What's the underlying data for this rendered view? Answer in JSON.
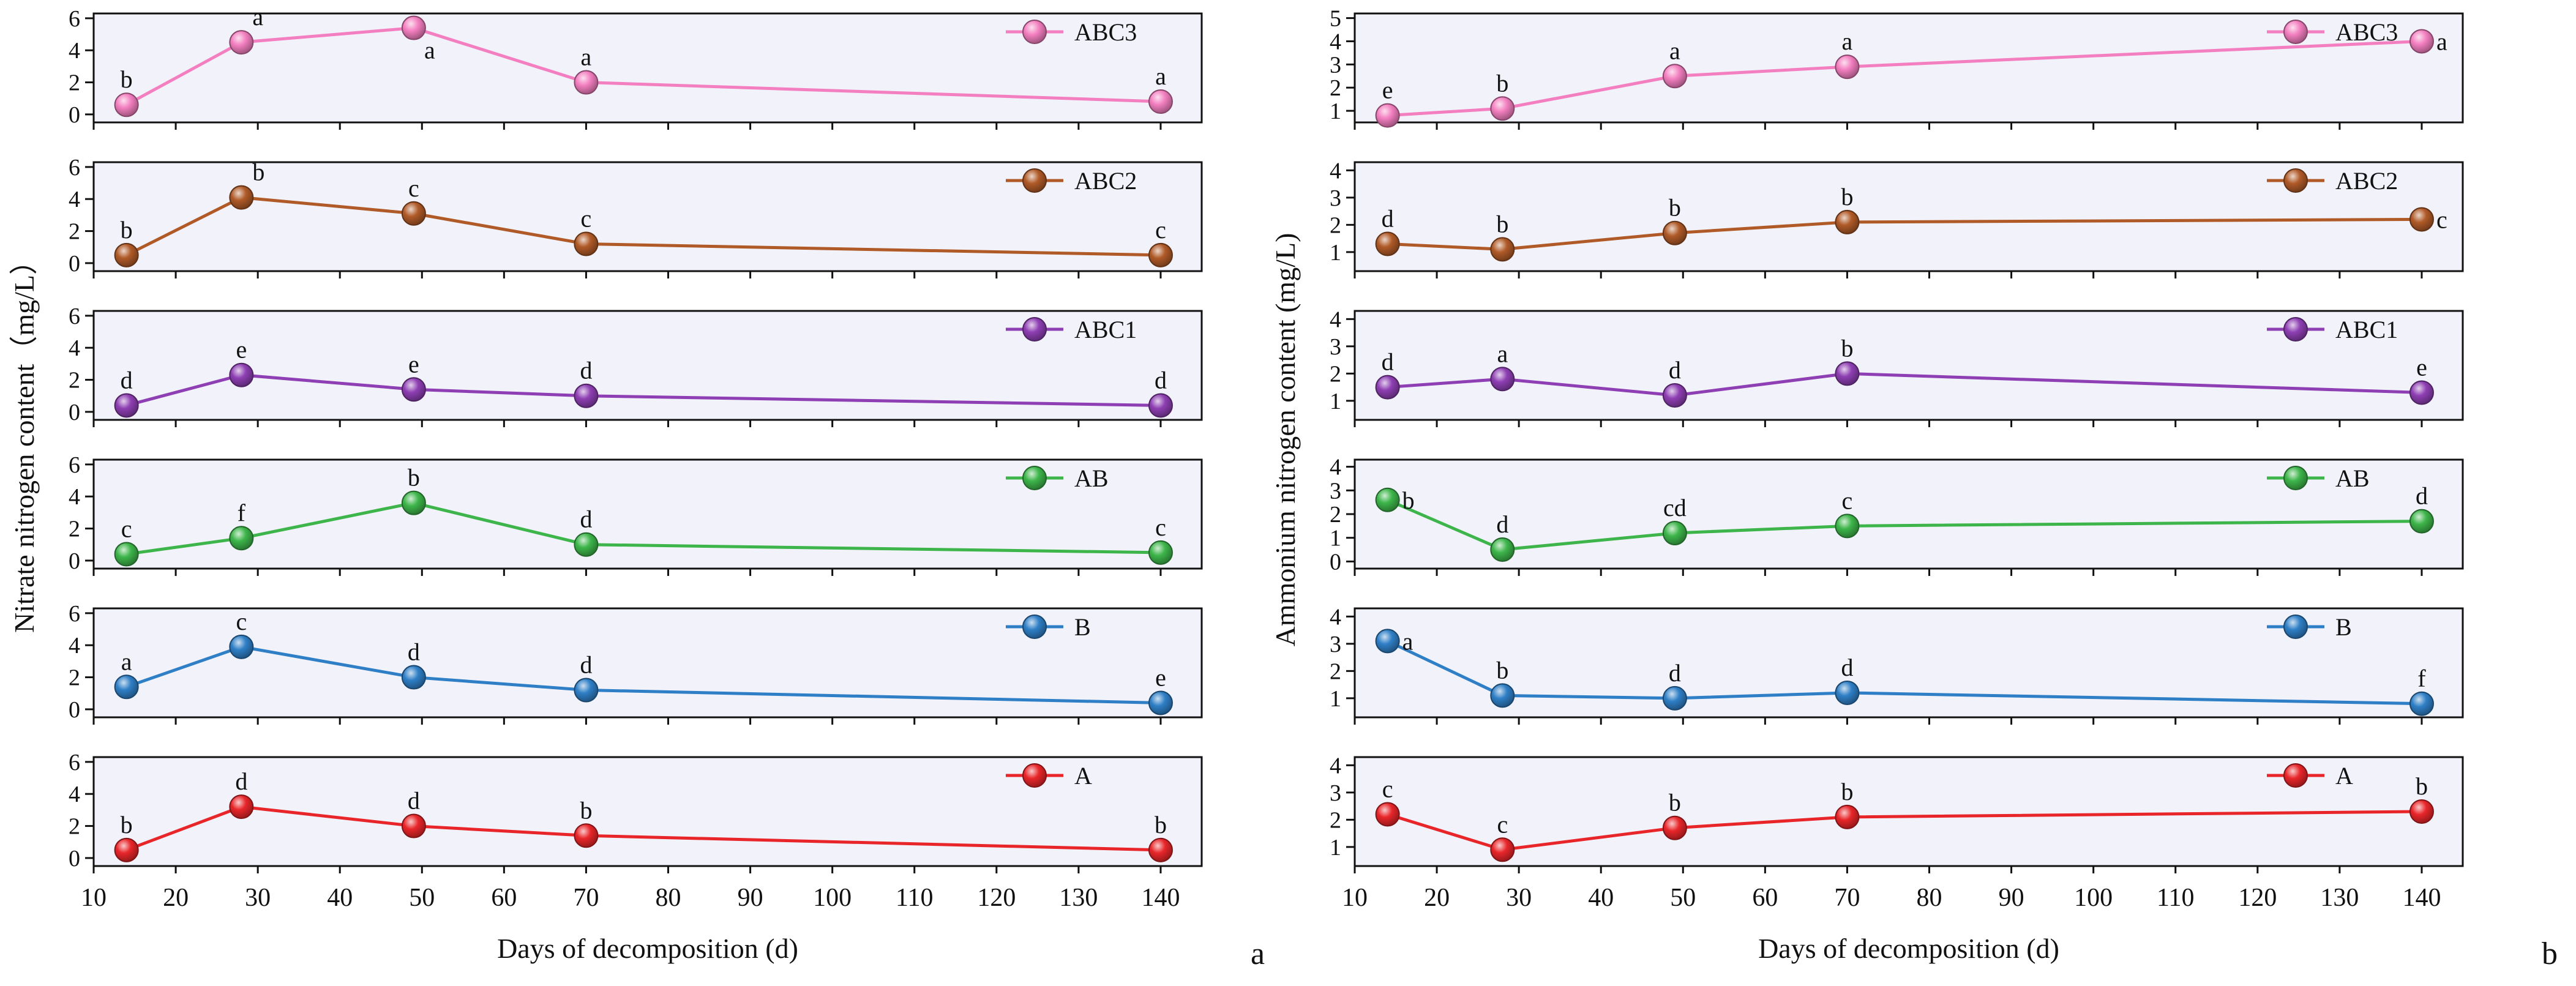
{
  "figure": {
    "panel_a_tag": "a",
    "panel_b_tag": "b"
  },
  "chart_data": [
    {
      "id": "a",
      "type": "line",
      "ylabel": "Nitrate nitrogen content（mg/L）",
      "xlabel": "Days of decomposition (d)",
      "xlim": [
        10,
        145
      ],
      "xticks": [
        10,
        20,
        30,
        40,
        50,
        60,
        70,
        80,
        90,
        100,
        110,
        120,
        130,
        140
      ],
      "x": [
        14,
        28,
        49,
        70,
        140
      ],
      "series": [
        {
          "name": "ABC3",
          "color": "#F37FC0",
          "ylim": [
            -0.5,
            6.3
          ],
          "yticks": [
            0,
            2,
            4,
            6
          ],
          "values": [
            0.6,
            4.5,
            5.4,
            2.0,
            0.8
          ],
          "letters": [
            "b",
            "a",
            "a",
            "a",
            "a"
          ],
          "letter_pos": [
            "above",
            "above",
            "below",
            "above",
            "above"
          ]
        },
        {
          "name": "ABC2",
          "color": "#B05A28",
          "ylim": [
            -0.5,
            6.3
          ],
          "yticks": [
            0,
            2,
            4,
            6
          ],
          "values": [
            0.5,
            4.1,
            3.1,
            1.2,
            0.5
          ],
          "letters": [
            "b",
            "b",
            "c",
            "c",
            "c"
          ],
          "letter_pos": [
            "above",
            "above",
            "above",
            "above",
            "above"
          ]
        },
        {
          "name": "ABC1",
          "color": "#8E3FB3",
          "ylim": [
            -0.5,
            6.3
          ],
          "yticks": [
            0,
            2,
            4,
            6
          ],
          "values": [
            0.4,
            2.3,
            1.4,
            1.0,
            0.4
          ],
          "letters": [
            "d",
            "e",
            "e",
            "d",
            "d"
          ],
          "letter_pos": [
            "above",
            "above",
            "above",
            "above",
            "above"
          ]
        },
        {
          "name": "AB",
          "color": "#3DB54A",
          "ylim": [
            -0.5,
            6.3
          ],
          "yticks": [
            0,
            2,
            4,
            6
          ],
          "values": [
            0.4,
            1.4,
            3.6,
            1.0,
            0.5
          ],
          "letters": [
            "c",
            "f",
            "b",
            "d",
            "c"
          ],
          "letter_pos": [
            "above",
            "above",
            "above",
            "above",
            "above"
          ]
        },
        {
          "name": "B",
          "color": "#2F7FC6",
          "ylim": [
            -0.5,
            6.3
          ],
          "yticks": [
            0,
            2,
            4,
            6
          ],
          "values": [
            1.4,
            3.9,
            2.0,
            1.2,
            0.4
          ],
          "letters": [
            "a",
            "c",
            "d",
            "d",
            "e"
          ],
          "letter_pos": [
            "above",
            "above",
            "above",
            "above",
            "above"
          ]
        },
        {
          "name": "A",
          "color": "#E8262A",
          "ylim": [
            -0.5,
            6.3
          ],
          "yticks": [
            0,
            2,
            4,
            6
          ],
          "values": [
            0.5,
            3.2,
            2.0,
            1.4,
            0.5
          ],
          "letters": [
            "b",
            "d",
            "d",
            "b",
            "b"
          ],
          "letter_pos": [
            "above",
            "above",
            "above",
            "above",
            "above"
          ]
        }
      ]
    },
    {
      "id": "b",
      "type": "line",
      "ylabel": "Ammonium nitrogen content (mg/L)",
      "xlabel": "Days of decomposition (d)",
      "xlim": [
        10,
        145
      ],
      "xticks": [
        10,
        20,
        30,
        40,
        50,
        60,
        70,
        80,
        90,
        100,
        110,
        120,
        130,
        140
      ],
      "x": [
        14,
        28,
        49,
        70,
        140
      ],
      "series": [
        {
          "name": "ABC3",
          "color": "#F37FC0",
          "ylim": [
            0.5,
            5.2
          ],
          "yticks": [
            1,
            2,
            3,
            4,
            5
          ],
          "values": [
            0.8,
            1.1,
            2.5,
            2.9,
            4.0
          ],
          "letters": [
            "e",
            "b",
            "a",
            "a",
            "a"
          ],
          "letter_pos": [
            "above",
            "above",
            "above",
            "above",
            "right"
          ]
        },
        {
          "name": "ABC2",
          "color": "#B05A28",
          "ylim": [
            0.3,
            4.3
          ],
          "yticks": [
            1,
            2,
            3,
            4
          ],
          "values": [
            1.3,
            1.1,
            1.7,
            2.1,
            2.2
          ],
          "letters": [
            "d",
            "b",
            "b",
            "b",
            "c"
          ],
          "letter_pos": [
            "above",
            "above",
            "above",
            "above",
            "right"
          ]
        },
        {
          "name": "ABC1",
          "color": "#8E3FB3",
          "ylim": [
            0.3,
            4.3
          ],
          "yticks": [
            1,
            2,
            3,
            4
          ],
          "values": [
            1.5,
            1.8,
            1.2,
            2.0,
            1.3
          ],
          "letters": [
            "d",
            "a",
            "d",
            "b",
            "e"
          ],
          "letter_pos": [
            "above",
            "above",
            "above",
            "above",
            "above"
          ]
        },
        {
          "name": "AB",
          "color": "#3DB54A",
          "ylim": [
            -0.3,
            4.3
          ],
          "yticks": [
            0,
            1,
            2,
            3,
            4
          ],
          "values": [
            2.6,
            0.5,
            1.2,
            1.5,
            1.7
          ],
          "letters": [
            "b",
            "d",
            "cd",
            "c",
            "d"
          ],
          "letter_pos": [
            "right",
            "above",
            "above",
            "above",
            "above"
          ]
        },
        {
          "name": "B",
          "color": "#2F7FC6",
          "ylim": [
            0.3,
            4.3
          ],
          "yticks": [
            1,
            2,
            3,
            4
          ],
          "values": [
            3.1,
            1.1,
            1.0,
            1.2,
            0.8
          ],
          "letters": [
            "a",
            "b",
            "d",
            "d",
            "f"
          ],
          "letter_pos": [
            "right",
            "above",
            "above",
            "above",
            "above"
          ]
        },
        {
          "name": "A",
          "color": "#E8262A",
          "ylim": [
            0.3,
            4.3
          ],
          "yticks": [
            1,
            2,
            3,
            4
          ],
          "values": [
            2.2,
            0.9,
            1.7,
            2.1,
            2.3
          ],
          "letters": [
            "c",
            "c",
            "b",
            "b",
            "b"
          ],
          "letter_pos": [
            "above",
            "above",
            "above",
            "above",
            "above"
          ]
        }
      ]
    }
  ]
}
